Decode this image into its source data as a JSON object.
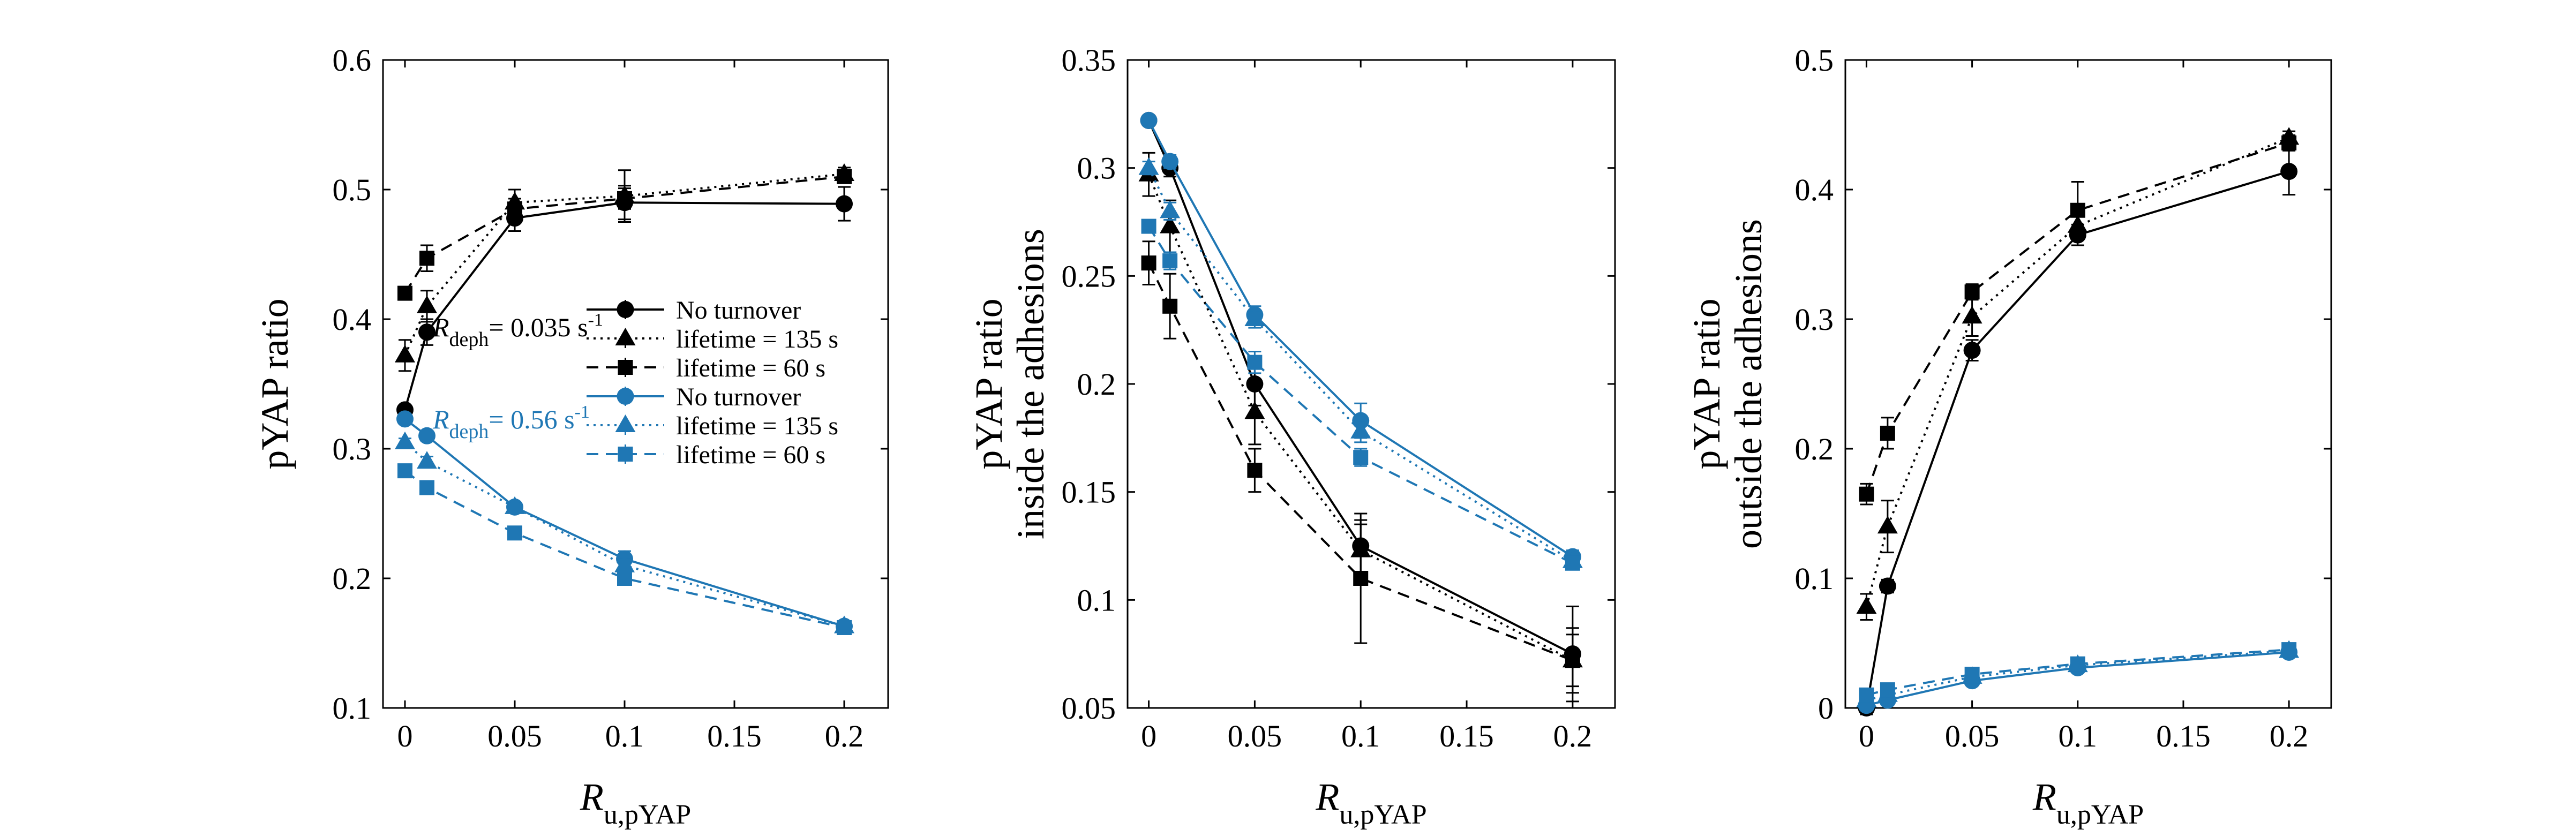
{
  "colors": {
    "black": "#000000",
    "blue": "#1f77b4"
  },
  "legend": {
    "rdeph_black": "= 0.035 s",
    "rdeph_blue": "= 0.56 s",
    "rdeph_sup": "-1",
    "rdeph_var": "R",
    "rdeph_sub": "deph",
    "entries": [
      "No turnover",
      "lifetime = 135 s",
      "lifetime = 60 s",
      "No turnover",
      "lifetime = 135 s",
      "lifetime = 60 s"
    ]
  },
  "xlabel": {
    "var": "R",
    "sub": "u,pYAP"
  },
  "chart_data": [
    {
      "type": "line",
      "ylabel": [
        "pYAP ratio"
      ],
      "xlim": [
        -0.01,
        0.22
      ],
      "ylim": [
        0.1,
        0.6
      ],
      "xticks": [
        "0",
        "0.05",
        "0.1",
        "0.15",
        "0.2"
      ],
      "yticks": [
        "0.1",
        "0.2",
        "0.3",
        "0.4",
        "0.5",
        "0.6"
      ],
      "x": [
        0,
        0.01,
        0.05,
        0.1,
        0.2
      ],
      "series": [
        {
          "name": "No turnover",
          "group": "R_deph = 0.035 s^-1",
          "color": "black",
          "marker": "circle",
          "dash": "solid",
          "values": [
            0.33,
            0.39,
            0.478,
            0.49,
            0.489
          ],
          "errors": [
            0.003,
            0.01,
            0.01,
            0.013,
            0.013
          ]
        },
        {
          "name": "lifetime = 135 s",
          "group": "R_deph = 0.035 s^-1",
          "color": "black",
          "marker": "triangle",
          "dash": "dotted",
          "values": [
            0.372,
            0.41,
            0.49,
            0.495,
            0.512
          ],
          "errors": [
            0.012,
            0.012,
            0.01,
            0.02,
            0.005
          ]
        },
        {
          "name": "lifetime = 60 s",
          "group": "R_deph = 0.035 s^-1",
          "color": "black",
          "marker": "square",
          "dash": "dashed",
          "values": [
            0.42,
            0.447,
            0.485,
            0.493,
            0.51
          ],
          "errors": [
            0.003,
            0.01,
            0.008,
            0.008,
            0.005
          ]
        },
        {
          "name": "No turnover",
          "group": "R_deph = 0.56 s^-1",
          "color": "blue",
          "marker": "circle",
          "dash": "solid",
          "values": [
            0.323,
            0.31,
            0.255,
            0.215,
            0.163
          ],
          "errors": [
            0.003,
            0.004,
            0.004,
            0.006,
            0.004
          ]
        },
        {
          "name": "lifetime = 135 s",
          "group": "R_deph = 0.56 s^-1",
          "color": "blue",
          "marker": "triangle",
          "dash": "dotted",
          "values": [
            0.305,
            0.29,
            0.255,
            0.21,
            0.163
          ],
          "errors": [
            0.003,
            0.004,
            0.004,
            0.005,
            0.003
          ]
        },
        {
          "name": "lifetime = 60 s",
          "group": "R_deph = 0.56 s^-1",
          "color": "blue",
          "marker": "square",
          "dash": "dashed",
          "values": [
            0.283,
            0.27,
            0.235,
            0.2,
            0.162
          ],
          "errors": [
            0.002,
            0.003,
            0.004,
            0.004,
            0.003
          ]
        }
      ]
    },
    {
      "type": "line",
      "ylabel": [
        "pYAP ratio",
        "inside the adhesions"
      ],
      "xlim": [
        -0.01,
        0.22
      ],
      "ylim": [
        0.05,
        0.35
      ],
      "xticks": [
        "0",
        "0.05",
        "0.1",
        "0.15",
        "0.2"
      ],
      "yticks": [
        "0.05",
        "0.1",
        "0.15",
        "0.2",
        "0.25",
        "0.3",
        "0.35"
      ],
      "x": [
        0,
        0.01,
        0.05,
        0.1,
        0.2
      ],
      "series": [
        {
          "name": "No turnover",
          "group": "R_deph = 0.035 s^-1",
          "color": "black",
          "marker": "circle",
          "dash": "solid",
          "values": [
            0.322,
            0.3,
            0.2,
            0.125,
            0.075
          ],
          "errors": [
            0.002,
            0.004,
            0.01,
            0.012,
            0.022
          ]
        },
        {
          "name": "lifetime = 135 s",
          "group": "R_deph = 0.035 s^-1",
          "color": "black",
          "marker": "triangle",
          "dash": "dotted",
          "values": [
            0.297,
            0.273,
            0.187,
            0.123,
            0.072
          ],
          "errors": [
            0.01,
            0.012,
            0.015,
            0.012,
            0.012
          ]
        },
        {
          "name": "lifetime = 60 s",
          "group": "R_deph = 0.035 s^-1",
          "color": "black",
          "marker": "square",
          "dash": "dashed",
          "values": [
            0.256,
            0.236,
            0.16,
            0.11,
            0.072
          ],
          "errors": [
            0.01,
            0.015,
            0.01,
            0.03,
            0.015
          ]
        },
        {
          "name": "No turnover",
          "group": "R_deph = 0.56 s^-1",
          "color": "blue",
          "marker": "circle",
          "dash": "solid",
          "values": [
            0.322,
            0.303,
            0.232,
            0.183,
            0.12
          ],
          "errors": [
            0.002,
            0.003,
            0.004,
            0.008,
            0.003
          ]
        },
        {
          "name": "lifetime = 135 s",
          "group": "R_deph = 0.56 s^-1",
          "color": "blue",
          "marker": "triangle",
          "dash": "dotted",
          "values": [
            0.3,
            0.28,
            0.23,
            0.178,
            0.118
          ],
          "errors": [
            0.003,
            0.004,
            0.004,
            0.005,
            0.003
          ]
        },
        {
          "name": "lifetime = 60 s",
          "group": "R_deph = 0.56 s^-1",
          "color": "blue",
          "marker": "square",
          "dash": "dashed",
          "values": [
            0.273,
            0.257,
            0.21,
            0.166,
            0.117
          ],
          "errors": [
            0.003,
            0.004,
            0.005,
            0.004,
            0.003
          ]
        }
      ]
    },
    {
      "type": "line",
      "ylabel": [
        "pYAP ratio",
        "outside the adhesions"
      ],
      "xlim": [
        -0.01,
        0.22
      ],
      "ylim": [
        0,
        0.5
      ],
      "xticks": [
        "0",
        "0.05",
        "0.1",
        "0.15",
        "0.2"
      ],
      "yticks": [
        "0",
        "0.1",
        "0.2",
        "0.3",
        "0.4",
        "0.5"
      ],
      "x": [
        0,
        0.01,
        0.05,
        0.1,
        0.2
      ],
      "series": [
        {
          "name": "No turnover",
          "group": "R_deph = 0.035 s^-1",
          "color": "black",
          "marker": "circle",
          "dash": "solid",
          "values": [
            0,
            0.094,
            0.276,
            0.365,
            0.414
          ],
          "errors": [
            0.005,
            0.005,
            0.008,
            0.008,
            0.018
          ]
        },
        {
          "name": "lifetime = 135 s",
          "group": "R_deph = 0.035 s^-1",
          "color": "black",
          "marker": "triangle",
          "dash": "dotted",
          "values": [
            0.078,
            0.14,
            0.302,
            0.372,
            0.44
          ],
          "errors": [
            0.01,
            0.02,
            0.015,
            0.01,
            0.005
          ]
        },
        {
          "name": "lifetime = 60 s",
          "group": "R_deph = 0.035 s^-1",
          "color": "black",
          "marker": "square",
          "dash": "dashed",
          "values": [
            0.165,
            0.212,
            0.321,
            0.384,
            0.436
          ],
          "errors": [
            0.008,
            0.012,
            0.006,
            0.022,
            0.006
          ]
        },
        {
          "name": "No turnover",
          "group": "R_deph = 0.56 s^-1",
          "color": "blue",
          "marker": "circle",
          "dash": "solid",
          "values": [
            0.002,
            0.006,
            0.021,
            0.031,
            0.043
          ],
          "errors": [
            0.002,
            0.002,
            0.003,
            0.003,
            0.003
          ]
        },
        {
          "name": "lifetime = 135 s",
          "group": "R_deph = 0.56 s^-1",
          "color": "blue",
          "marker": "triangle",
          "dash": "dotted",
          "values": [
            0.006,
            0.01,
            0.024,
            0.033,
            0.044
          ],
          "errors": [
            0.002,
            0.002,
            0.003,
            0.003,
            0.003
          ]
        },
        {
          "name": "lifetime = 60 s",
          "group": "R_deph = 0.56 s^-1",
          "color": "blue",
          "marker": "square",
          "dash": "dashed",
          "values": [
            0.01,
            0.014,
            0.026,
            0.034,
            0.045
          ],
          "errors": [
            0.002,
            0.002,
            0.003,
            0.003,
            0.003
          ]
        }
      ]
    }
  ]
}
